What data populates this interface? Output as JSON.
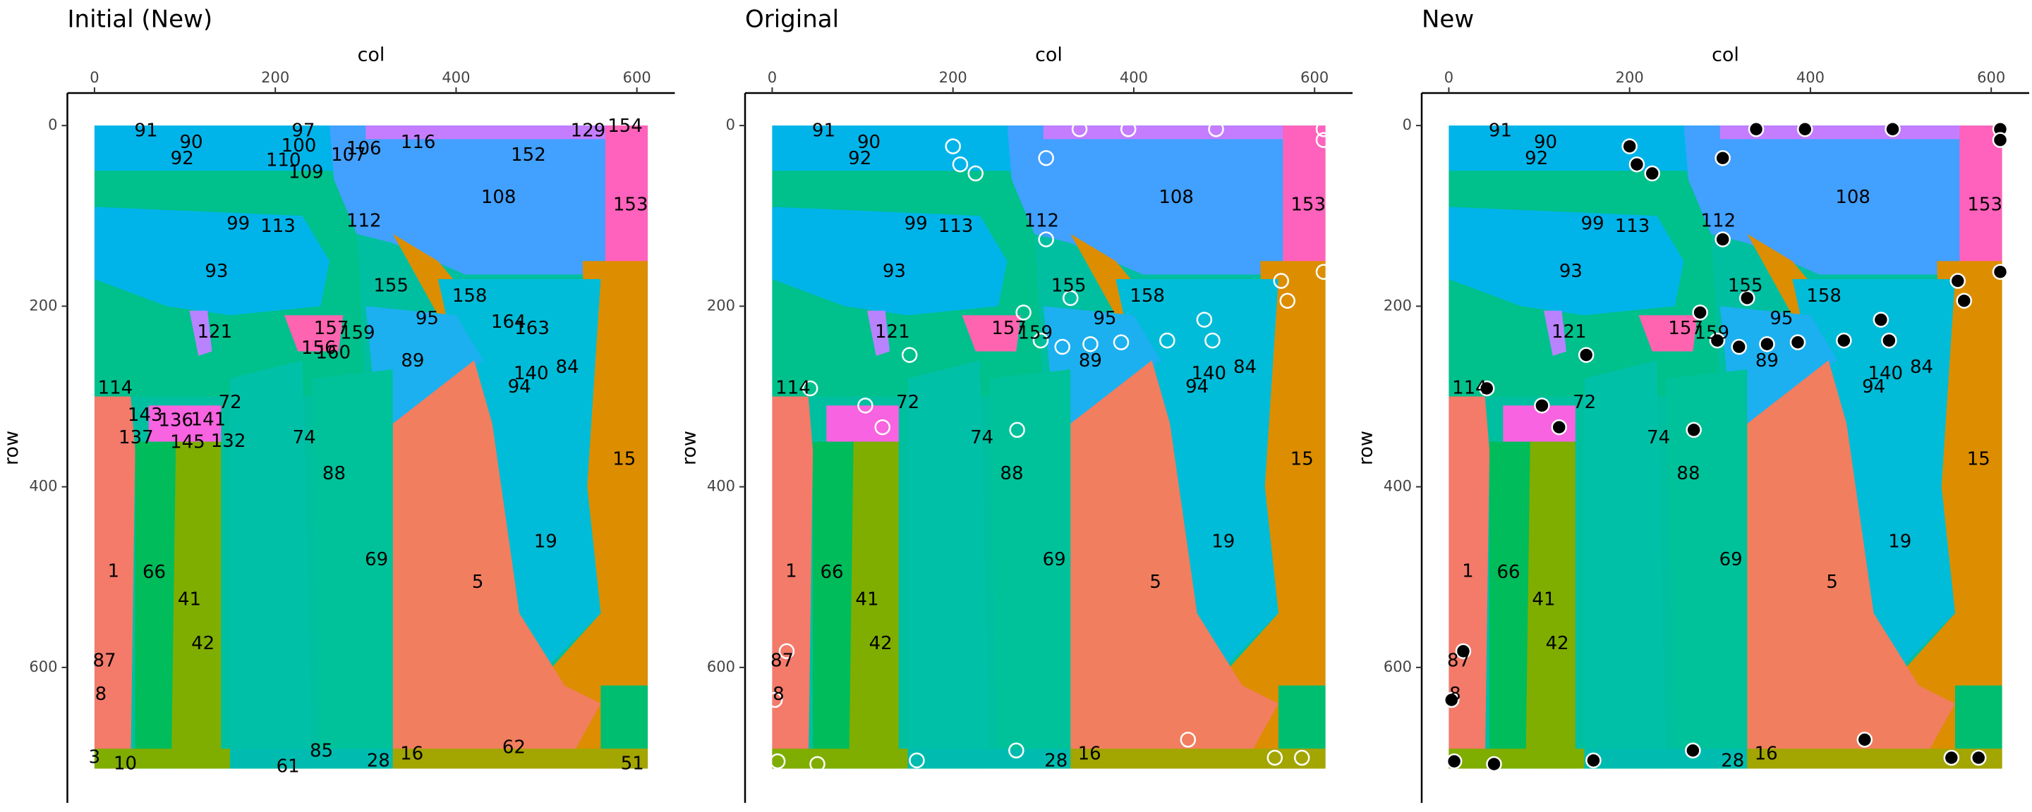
{
  "chart_data": [
    {
      "type": "labelmap",
      "title": "Initial (New)",
      "xlabel": "col",
      "ylabel": "row",
      "xlim": [
        -30,
        642
      ],
      "ylim": [
        -36,
        750
      ],
      "y_reversed": true,
      "xticks": [
        0,
        200,
        400,
        600
      ],
      "yticks": [
        0,
        200,
        400,
        600
      ],
      "labels": {
        "text": [
          "91",
          "90",
          "92",
          "97",
          "100",
          "110",
          "109",
          "106",
          "107",
          "116",
          "152",
          "129",
          "154",
          "108",
          "153",
          "112",
          "99",
          "113",
          "93",
          "155",
          "158",
          "95",
          "164",
          "163",
          "121",
          "157",
          "159",
          "156",
          "160",
          "89",
          "84",
          "140",
          "94",
          "114",
          "72",
          "143",
          "136",
          "141",
          "137",
          "145",
          "132",
          "74",
          "15",
          "88",
          "19",
          "69",
          "1",
          "66",
          "5",
          "41",
          "42",
          "87",
          "8",
          "28",
          "16",
          "62",
          "3",
          "10",
          "61",
          "85",
          "51"
        ],
        "x": [
          57,
          107,
          97,
          231,
          226,
          209,
          234,
          298,
          281,
          358,
          480,
          546,
          587,
          447,
          593,
          298,
          159,
          203,
          135,
          328,
          415,
          368,
          458,
          484,
          133,
          262,
          291,
          248,
          264,
          352,
          523,
          483,
          470,
          23,
          150,
          56,
          90,
          126,
          46,
          103,
          148,
          232,
          586,
          265,
          499,
          312,
          21,
          66,
          424,
          105,
          120,
          11,
          7,
          314,
          351,
          464,
          0,
          34,
          214,
          251,
          595
        ],
        "y": [
          6,
          19,
          37,
          6,
          23,
          39,
          52,
          26,
          33,
          19,
          33,
          6,
          1,
          80,
          88,
          106,
          109,
          112,
          162,
          178,
          189,
          214,
          218,
          225,
          229,
          225,
          230,
          247,
          252,
          261,
          268,
          275,
          290,
          291,
          307,
          321,
          327,
          326,
          346,
          351,
          350,
          346,
          370,
          386,
          461,
          481,
          494,
          495,
          506,
          525,
          574,
          593,
          630,
          704,
          696,
          689,
          700,
          707,
          710,
          693,
          707
        ]
      },
      "label_color": "#000000"
    },
    {
      "type": "labelmap",
      "title": "Original",
      "xlabel": "col",
      "ylabel": "row",
      "xlim": [
        -30,
        642
      ],
      "ylim": [
        -36,
        750
      ],
      "y_reversed": true,
      "xticks": [
        0,
        200,
        400,
        600
      ],
      "yticks": [
        0,
        200,
        400,
        600
      ],
      "labels": {
        "text": [
          "91",
          "90",
          "92",
          "108",
          "153",
          "112",
          "99",
          "113",
          "93",
          "155",
          "158",
          "95",
          "121",
          "157",
          "159",
          "89",
          "84",
          "140",
          "94",
          "114",
          "72",
          "74",
          "15",
          "88",
          "19",
          "69",
          "1",
          "66",
          "5",
          "41",
          "42",
          "87",
          "8",
          "28",
          "16"
        ],
        "x": [
          57,
          107,
          97,
          447,
          593,
          298,
          159,
          203,
          135,
          328,
          415,
          368,
          133,
          262,
          291,
          352,
          523,
          483,
          470,
          23,
          150,
          232,
          586,
          265,
          499,
          312,
          21,
          66,
          424,
          105,
          120,
          11,
          7,
          314,
          351
        ],
        "y": [
          6,
          19,
          37,
          80,
          88,
          106,
          109,
          112,
          162,
          178,
          189,
          214,
          229,
          225,
          230,
          261,
          268,
          275,
          290,
          291,
          307,
          346,
          370,
          386,
          461,
          481,
          494,
          495,
          506,
          525,
          574,
          593,
          630,
          704,
          696
        ]
      },
      "label_color": "#000000",
      "points": {
        "x": [
          200,
          208,
          225,
          303,
          303,
          330,
          278,
          297,
          321,
          386,
          352,
          437,
          478,
          487,
          271,
          152,
          42,
          103,
          122,
          16,
          3,
          563,
          570,
          610,
          270,
          460,
          586,
          6,
          50,
          160,
          340,
          394,
          491,
          610,
          610,
          556
        ],
        "y": [
          23,
          43,
          53,
          36,
          126,
          191,
          207,
          238,
          245,
          240,
          242,
          238,
          215,
          238,
          337,
          254,
          291,
          310,
          334,
          582,
          636,
          172,
          194,
          162,
          692,
          680,
          700,
          704,
          707,
          703,
          4,
          4,
          4,
          4,
          16,
          700
        ]
      },
      "marker_fill": "none",
      "marker_edge": "#ffffff"
    },
    {
      "type": "labelmap",
      "title": "New",
      "xlabel": "col",
      "ylabel": "row",
      "xlim": [
        -30,
        642
      ],
      "ylim": [
        -36,
        750
      ],
      "y_reversed": true,
      "xticks": [
        0,
        200,
        400,
        600
      ],
      "yticks": [
        0,
        200,
        400,
        600
      ],
      "labels": {
        "text": [
          "91",
          "90",
          "92",
          "108",
          "153",
          "112",
          "99",
          "113",
          "93",
          "155",
          "158",
          "95",
          "121",
          "157",
          "159",
          "89",
          "84",
          "140",
          "94",
          "114",
          "72",
          "74",
          "15",
          "88",
          "19",
          "69",
          "1",
          "66",
          "5",
          "41",
          "42",
          "87",
          "8",
          "28",
          "16"
        ],
        "x": [
          57,
          107,
          97,
          447,
          593,
          298,
          159,
          203,
          135,
          328,
          415,
          368,
          133,
          262,
          291,
          352,
          523,
          483,
          470,
          23,
          150,
          232,
          586,
          265,
          499,
          312,
          21,
          66,
          424,
          105,
          120,
          11,
          7,
          314,
          351
        ],
        "y": [
          6,
          19,
          37,
          80,
          88,
          106,
          109,
          112,
          162,
          178,
          189,
          214,
          229,
          225,
          230,
          261,
          268,
          275,
          290,
          291,
          307,
          346,
          370,
          386,
          461,
          481,
          494,
          495,
          506,
          525,
          574,
          593,
          630,
          704,
          696
        ]
      },
      "label_color": "#000000",
      "points": {
        "x": [
          200,
          208,
          225,
          303,
          303,
          330,
          278,
          297,
          321,
          386,
          352,
          437,
          478,
          487,
          271,
          152,
          42,
          103,
          122,
          16,
          3,
          563,
          570,
          610,
          270,
          460,
          586,
          6,
          50,
          160,
          340,
          394,
          491,
          610,
          610,
          556
        ],
        "y": [
          23,
          43,
          53,
          36,
          126,
          191,
          207,
          238,
          245,
          240,
          242,
          238,
          215,
          238,
          337,
          254,
          291,
          310,
          334,
          582,
          636,
          172,
          194,
          162,
          692,
          680,
          700,
          704,
          707,
          703,
          4,
          4,
          4,
          4,
          16,
          700
        ]
      },
      "marker_fill": "#000000",
      "marker_edge": "#ffffff"
    }
  ]
}
